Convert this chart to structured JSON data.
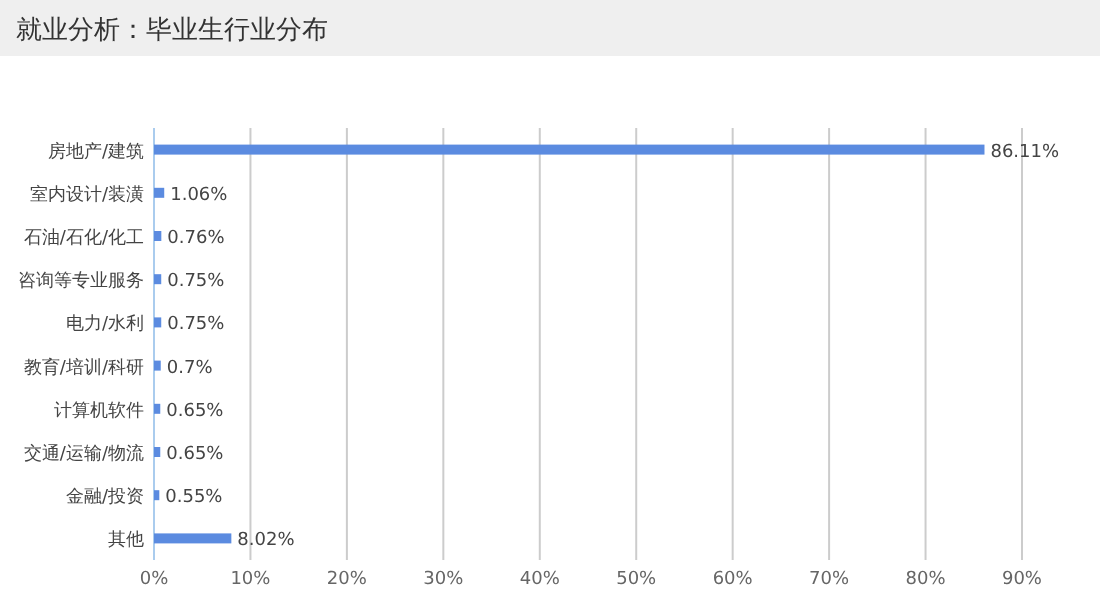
{
  "chart_data": {
    "type": "bar",
    "orientation": "horizontal",
    "title": "就业分析：毕业生行业分布",
    "categories": [
      "房地产/建筑",
      "室内设计/装潢",
      "石油/石化/化工",
      "咨询等专业服务",
      "电力/水利",
      "教育/培训/科研",
      "计算机软件",
      "交通/运输/物流",
      "金融/投资",
      "其他"
    ],
    "values": [
      86.11,
      1.06,
      0.76,
      0.75,
      0.75,
      0.7,
      0.65,
      0.65,
      0.55,
      8.02
    ],
    "value_labels": [
      "86.11%",
      "1.06%",
      "0.76%",
      "0.75%",
      "0.75%",
      "0.7%",
      "0.65%",
      "0.65%",
      "0.55%",
      "8.02%"
    ],
    "color": "#5b8be0",
    "xlim": [
      0,
      90
    ],
    "xticks": [
      {
        "value": 0,
        "label": "0%"
      },
      {
        "value": 10,
        "label": "10%"
      },
      {
        "value": 20,
        "label": "20%"
      },
      {
        "value": 30,
        "label": "30%"
      },
      {
        "value": 40,
        "label": "40%"
      },
      {
        "value": 50,
        "label": "50%"
      },
      {
        "value": 60,
        "label": "60%"
      },
      {
        "value": 70,
        "label": "70%"
      },
      {
        "value": 80,
        "label": "80%"
      },
      {
        "value": 90,
        "label": "90%"
      }
    ],
    "grid": "x"
  }
}
